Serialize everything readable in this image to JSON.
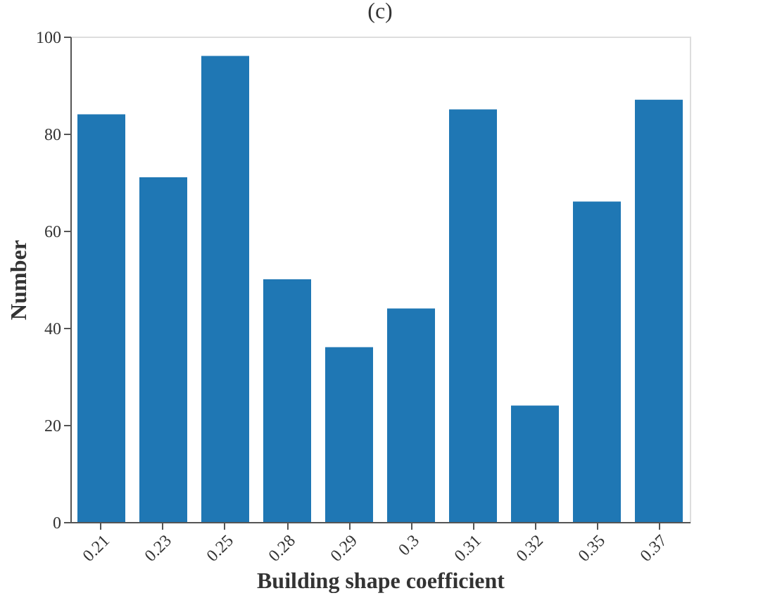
{
  "chart_data": {
    "type": "bar",
    "title": "(c)",
    "xlabel": "Building shape coefficient",
    "ylabel": "Number",
    "categories": [
      "0.21",
      "0.23",
      "0.25",
      "0.28",
      "0.29",
      "0.3",
      "0.31",
      "0.32",
      "0.35",
      "0.37"
    ],
    "values": [
      84,
      71,
      96,
      50,
      36,
      44,
      85,
      24,
      66,
      87
    ],
    "color": "#1f77b4",
    "ylim": [
      0,
      100
    ],
    "yticks": [
      0,
      20,
      40,
      60,
      80,
      100
    ],
    "grid": false
  }
}
